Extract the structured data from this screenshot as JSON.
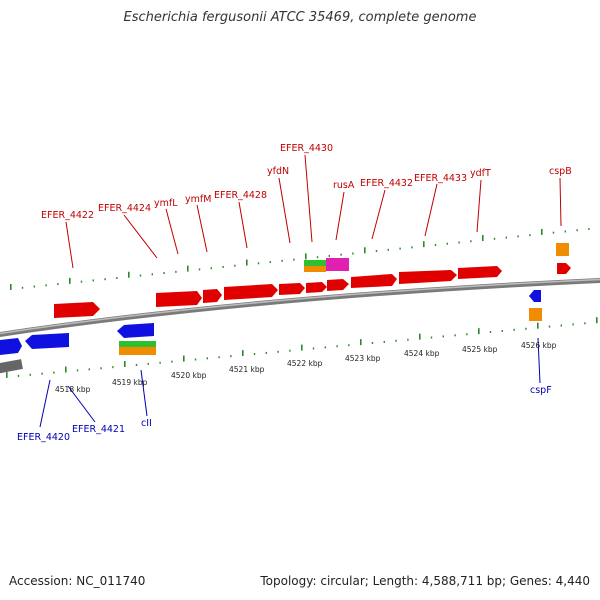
{
  "title": "Escherichia fergusonii ATCC 35469, complete genome",
  "footer": {
    "accession": "Accession: NC_011740",
    "topology": "Topology: circular; Length: 4,588,711 bp; Genes: 4,440"
  },
  "colors": {
    "forward_gene": "#e00000",
    "reverse_gene": "#1010e0",
    "forward_label": "#c00000",
    "reverse_label": "#0000b0",
    "tick": "#2a8a2a",
    "backbone": "#8c8c8c",
    "orange_feature": "#f08c00",
    "green_feature": "#2ec02e",
    "magenta_feature": "#e020b0"
  },
  "scale": {
    "unit": "kbp",
    "ticks": [
      "4518 kbp",
      "4519 kbp",
      "4520 kbp",
      "4521 kbp",
      "4522 kbp",
      "4523 kbp",
      "4524 kbp",
      "4525 kbp",
      "4526 kbp"
    ]
  },
  "forward_gene_labels": [
    "EFER_4422",
    "EFER_4424",
    "ymfL",
    "ymfM",
    "EFER_4428",
    "yfdN",
    "EFER_4430",
    "rusA",
    "EFER_4432",
    "EFER_4433",
    "ydfT",
    "cspB"
  ],
  "reverse_gene_labels": [
    "EFER_4420",
    "EFER_4421",
    "cII",
    "cspF"
  ]
}
